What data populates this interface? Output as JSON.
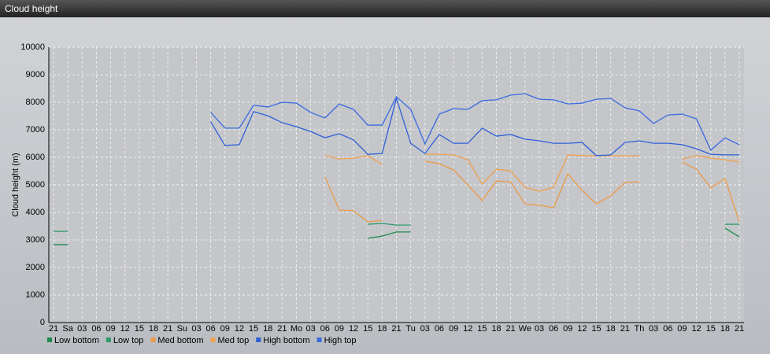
{
  "chart_data": {
    "type": "line",
    "title": "Cloud height",
    "y_label": "Cloud height (m)",
    "categories": [
      "21",
      "Sa",
      "03",
      "06",
      "09",
      "12",
      "15",
      "18",
      "21",
      "Su",
      "03",
      "06",
      "09",
      "12",
      "15",
      "18",
      "21",
      "Mo",
      "03",
      "06",
      "09",
      "12",
      "15",
      "18",
      "21",
      "Tu",
      "03",
      "06",
      "09",
      "12",
      "15",
      "18",
      "21",
      "We",
      "03",
      "06",
      "09",
      "12",
      "15",
      "18",
      "21",
      "Th",
      "03",
      "06",
      "09",
      "12",
      "15",
      "18",
      "21"
    ],
    "ylim": [
      0,
      10000
    ],
    "yticks": [
      0,
      1000,
      2000,
      3000,
      4000,
      5000,
      6000,
      7000,
      8000,
      9000,
      10000
    ],
    "grid": true,
    "legend": "bottom",
    "series": [
      {
        "name": "Low bottom",
        "color": "#1f8a4c",
        "values": [
          2830,
          2830,
          null,
          null,
          null,
          null,
          null,
          null,
          null,
          null,
          null,
          null,
          null,
          null,
          null,
          null,
          null,
          null,
          null,
          null,
          null,
          null,
          3060,
          3140,
          3290,
          3290,
          null,
          null,
          null,
          null,
          null,
          null,
          null,
          null,
          null,
          null,
          null,
          null,
          null,
          null,
          null,
          null,
          null,
          null,
          null,
          null,
          null,
          3430,
          3110
        ]
      },
      {
        "name": "Low top",
        "color": "#2e9a66",
        "values": [
          3310,
          3310,
          null,
          null,
          null,
          null,
          null,
          null,
          null,
          null,
          null,
          null,
          null,
          null,
          null,
          null,
          null,
          null,
          null,
          null,
          null,
          null,
          3570,
          3600,
          3540,
          3540,
          null,
          null,
          null,
          null,
          null,
          null,
          null,
          null,
          null,
          null,
          null,
          null,
          null,
          null,
          null,
          null,
          null,
          null,
          null,
          null,
          null,
          3570,
          3570
        ]
      },
      {
        "name": "Med bottom",
        "color": "#ec9a48",
        "values": [
          null,
          null,
          null,
          null,
          null,
          null,
          null,
          null,
          null,
          null,
          null,
          null,
          null,
          null,
          null,
          null,
          null,
          null,
          null,
          5290,
          4090,
          4060,
          3660,
          3710,
          null,
          null,
          5860,
          5770,
          5540,
          5000,
          4430,
          5140,
          5110,
          4310,
          4260,
          4170,
          5400,
          4800,
          4310,
          4600,
          5090,
          5110,
          null,
          null,
          5830,
          5570,
          4890,
          5230,
          3660
        ]
      },
      {
        "name": "Med top",
        "color": "#f0a050",
        "values": [
          null,
          null,
          null,
          null,
          null,
          null,
          null,
          null,
          null,
          null,
          null,
          null,
          null,
          null,
          null,
          null,
          null,
          null,
          null,
          6060,
          5940,
          5970,
          6060,
          5740,
          null,
          null,
          6110,
          6110,
          6090,
          5910,
          5030,
          5570,
          5510,
          4910,
          4770,
          4910,
          6090,
          6060,
          6060,
          6060,
          6060,
          6060,
          null,
          null,
          5940,
          6060,
          5970,
          5910,
          5830
        ]
      },
      {
        "name": "High bottom",
        "color": "#2f5fd6",
        "values": [
          null,
          null,
          null,
          null,
          null,
          null,
          null,
          null,
          null,
          null,
          null,
          7290,
          6430,
          6460,
          7660,
          7510,
          7260,
          7110,
          6940,
          6710,
          6860,
          6630,
          6110,
          6140,
          8140,
          6510,
          6140,
          6830,
          6510,
          6510,
          7060,
          6770,
          6830,
          6660,
          6600,
          6510,
          6510,
          6540,
          6060,
          6090,
          6540,
          6600,
          6510,
          6510,
          6460,
          6310,
          6110,
          6090,
          6090
        ]
      },
      {
        "name": "High top",
        "color": "#3a6ae0",
        "values": [
          null,
          null,
          null,
          null,
          null,
          null,
          null,
          null,
          null,
          null,
          null,
          7630,
          7060,
          7060,
          7890,
          7830,
          8000,
          7970,
          7630,
          7430,
          7940,
          7740,
          7170,
          7170,
          8200,
          7740,
          6490,
          7570,
          7770,
          7740,
          8060,
          8090,
          8260,
          8310,
          8110,
          8090,
          7940,
          7970,
          8110,
          8140,
          7800,
          7690,
          7230,
          7540,
          7570,
          7400,
          6260,
          6710,
          6460
        ]
      }
    ]
  }
}
